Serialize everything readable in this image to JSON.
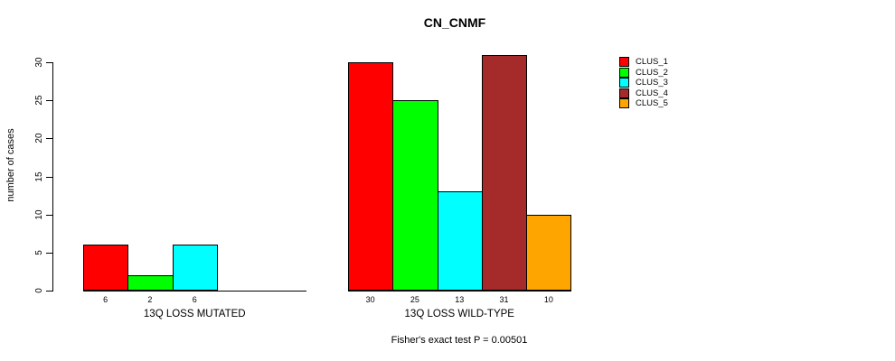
{
  "chart_data": {
    "type": "bar",
    "title": "CN_CNMF",
    "xlabel": "",
    "ylabel": "number of cases",
    "ylim": [
      0,
      31
    ],
    "yticks": [
      0,
      5,
      10,
      15,
      20,
      25,
      30
    ],
    "grid": false,
    "legend_position": "right",
    "bar_outline_color": "#000000",
    "categories": [
      "13Q LOSS MUTATED",
      "13Q LOSS WILD-TYPE"
    ],
    "series": [
      {
        "name": "CLUS_1",
        "color": "#FF0000",
        "values": [
          6,
          30
        ]
      },
      {
        "name": "CLUS_2",
        "color": "#00FF00",
        "values": [
          2,
          25
        ]
      },
      {
        "name": "CLUS_3",
        "color": "#00FFFF",
        "values": [
          6,
          13
        ]
      },
      {
        "name": "CLUS_4",
        "color": "#A52A2A",
        "values": [
          0,
          31
        ]
      },
      {
        "name": "CLUS_5",
        "color": "#FFA500",
        "values": [
          0,
          10
        ]
      }
    ],
    "bar_value_labels_shown": true,
    "zero_value_bars_hidden": true,
    "annotation": "Fisher's exact test P = 0.00501"
  }
}
